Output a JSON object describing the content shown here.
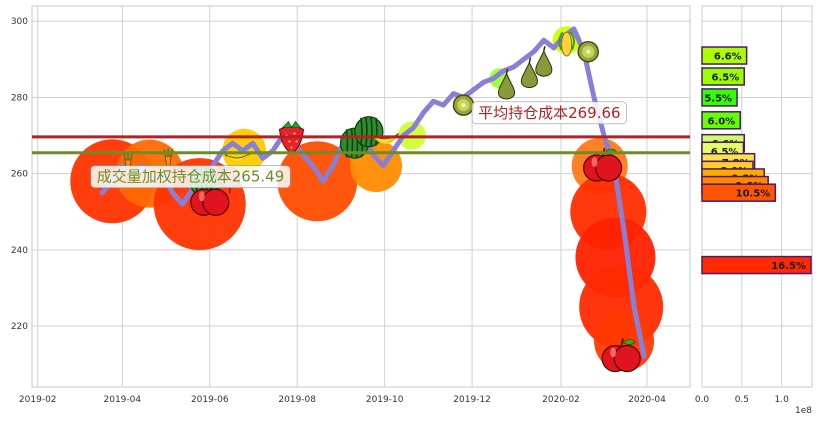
{
  "chart_data": [
    {
      "type": "line",
      "x_ticks": [
        "2019-02",
        "2019-04",
        "2019-06",
        "2019-08",
        "2019-10",
        "2019-12",
        "2020-02",
        "2020-04"
      ],
      "y_ticks": [
        220,
        240,
        260,
        280,
        300
      ],
      "ylim": [
        204,
        304
      ],
      "xlim": [
        "2019-01-28",
        "2020-05-01"
      ],
      "grid": true,
      "price_series": [
        [
          "2019-03-18",
          255
        ],
        [
          "2019-03-25",
          258
        ],
        [
          "2019-04-01",
          262
        ],
        [
          "2019-04-08",
          260
        ],
        [
          "2019-04-15",
          262
        ],
        [
          "2019-04-22",
          258
        ],
        [
          "2019-04-29",
          260
        ],
        [
          "2019-05-06",
          255
        ],
        [
          "2019-05-13",
          252
        ],
        [
          "2019-05-20",
          256
        ],
        [
          "2019-05-27",
          258
        ],
        [
          "2019-06-03",
          262
        ],
        [
          "2019-06-10",
          266
        ],
        [
          "2019-06-17",
          268
        ],
        [
          "2019-06-24",
          266
        ],
        [
          "2019-07-01",
          268
        ],
        [
          "2019-07-08",
          264
        ],
        [
          "2019-07-15",
          266
        ],
        [
          "2019-07-22",
          270
        ],
        [
          "2019-07-29",
          268
        ],
        [
          "2019-08-05",
          265
        ],
        [
          "2019-08-12",
          262
        ],
        [
          "2019-08-19",
          258
        ],
        [
          "2019-08-26",
          262
        ],
        [
          "2019-09-02",
          268
        ],
        [
          "2019-09-09",
          271
        ],
        [
          "2019-09-16",
          270
        ],
        [
          "2019-09-23",
          265
        ],
        [
          "2019-09-30",
          262
        ],
        [
          "2019-10-07",
          266
        ],
        [
          "2019-10-14",
          270
        ],
        [
          "2019-10-21",
          272
        ],
        [
          "2019-10-28",
          276
        ],
        [
          "2019-11-04",
          279
        ],
        [
          "2019-11-11",
          278
        ],
        [
          "2019-11-18",
          281
        ],
        [
          "2019-11-25",
          280
        ],
        [
          "2019-12-02",
          282
        ],
        [
          "2019-12-09",
          284
        ],
        [
          "2019-12-16",
          285
        ],
        [
          "2019-12-23",
          287
        ],
        [
          "2019-12-30",
          288
        ],
        [
          "2020-01-06",
          290
        ],
        [
          "2020-01-13",
          292
        ],
        [
          "2020-01-20",
          295
        ],
        [
          "2020-01-27",
          293
        ],
        [
          "2020-02-03",
          296
        ],
        [
          "2020-02-10",
          298
        ],
        [
          "2020-02-17",
          292
        ],
        [
          "2020-02-24",
          280
        ],
        [
          "2020-03-02",
          270
        ],
        [
          "2020-03-09",
          262
        ],
        [
          "2020-03-16",
          245
        ],
        [
          "2020-03-23",
          225
        ],
        [
          "2020-03-30",
          212
        ]
      ],
      "reference_lines": [
        {
          "label": "平均持仓成本269.66",
          "value": 269.66,
          "color": "#b22222",
          "label_x": "2019-12-01"
        },
        {
          "label": "成交量加权持仓成本265.49",
          "value": 265.49,
          "color": "#6b8e23",
          "label_x": "2019-03-10"
        }
      ],
      "bubbles": [
        {
          "x": "2019-03-25",
          "y": 258,
          "r": 42,
          "color": "#ff3300"
        },
        {
          "x": "2019-04-20",
          "y": 260,
          "r": 34,
          "color": "#ff6a00"
        },
        {
          "x": "2019-05-25",
          "y": 252,
          "r": 46,
          "color": "#ff3300"
        },
        {
          "x": "2019-06-25",
          "y": 266,
          "r": 22,
          "color": "#ffcc00"
        },
        {
          "x": "2019-08-15",
          "y": 258,
          "r": 40,
          "color": "#ff4d00"
        },
        {
          "x": "2019-09-25",
          "y": 262,
          "r": 26,
          "color": "#ff8c00"
        },
        {
          "x": "2019-10-20",
          "y": 270,
          "r": 14,
          "color": "#ccff33"
        },
        {
          "x": "2019-12-20",
          "y": 285,
          "r": 10,
          "color": "#99ff33"
        },
        {
          "x": "2020-02-05",
          "y": 295,
          "r": 14,
          "color": "#ccff00"
        },
        {
          "x": "2020-02-28",
          "y": 262,
          "r": 28,
          "color": "#ff7a1a"
        },
        {
          "x": "2020-03-05",
          "y": 250,
          "r": 38,
          "color": "#ff2d00"
        },
        {
          "x": "2020-03-10",
          "y": 238,
          "r": 40,
          "color": "#ff2200"
        },
        {
          "x": "2020-03-14",
          "y": 225,
          "r": 42,
          "color": "#ff2a00"
        },
        {
          "x": "2020-03-16",
          "y": 216,
          "r": 30,
          "color": "#ff3a00"
        }
      ],
      "fruit_markers": [
        {
          "x": "2019-04-05",
          "y": 262,
          "icon": "carrot-icon"
        },
        {
          "x": "2019-05-03",
          "y": 263,
          "icon": "carrot-icon"
        },
        {
          "x": "2019-05-28",
          "y": 258,
          "icon": "watermelon-icon"
        },
        {
          "x": "2019-06-01",
          "y": 253,
          "icon": "apple-icon"
        },
        {
          "x": "2019-06-15",
          "y": 259,
          "icon": "radish-icon"
        },
        {
          "x": "2019-06-20",
          "y": 264,
          "icon": "banana-icon"
        },
        {
          "x": "2019-07-28",
          "y": 270,
          "icon": "strawberry-icon"
        },
        {
          "x": "2019-09-10",
          "y": 268,
          "icon": "watermelon-icon"
        },
        {
          "x": "2019-09-20",
          "y": 271,
          "icon": "watermelon-icon"
        },
        {
          "x": "2019-10-01",
          "y": 269,
          "icon": "banana-icon"
        },
        {
          "x": "2019-11-25",
          "y": 278,
          "icon": "kiwi-icon"
        },
        {
          "x": "2019-12-25",
          "y": 283,
          "icon": "pear-icon"
        },
        {
          "x": "2020-01-10",
          "y": 286,
          "icon": "pear-icon"
        },
        {
          "x": "2020-01-20",
          "y": 289,
          "icon": "pear-icon"
        },
        {
          "x": "2020-02-05",
          "y": 294,
          "icon": "corn-icon"
        },
        {
          "x": "2020-02-20",
          "y": 292,
          "icon": "kiwi-icon"
        },
        {
          "x": "2020-03-01",
          "y": 262,
          "icon": "apple-icon"
        },
        {
          "x": "2020-03-14",
          "y": 212,
          "icon": "apple-icon"
        }
      ]
    },
    {
      "type": "bar",
      "orientation": "horizontal",
      "x_ticks": [
        "0.0",
        "0.5",
        "1.0"
      ],
      "x_tick_values": [
        0,
        0.5,
        1.0
      ],
      "x_offset_label": "1e8",
      "xlim": [
        0,
        1.38
      ],
      "ylim": [
        204,
        304
      ],
      "bars": [
        {
          "price": 291,
          "volume": 0.56,
          "label": "6.6%",
          "color": "#aaff00"
        },
        {
          "price": 285.5,
          "volume": 0.53,
          "label": "6.5%",
          "color": "#99ff00"
        },
        {
          "price": 280,
          "volume": 0.44,
          "label": "5.5%",
          "color": "#33ff00"
        },
        {
          "price": 274,
          "volume": 0.48,
          "label": "6.0%",
          "color": "#66ff00"
        },
        {
          "price": 268,
          "volume": 0.53,
          "label": "6.6%",
          "color": "#ccff66"
        },
        {
          "price": 266,
          "volume": 0.52,
          "label": "6.5%",
          "color": "#e6ff66"
        },
        {
          "price": 263,
          "volume": 0.66,
          "label": "7.8%",
          "color": "#ffe14d"
        },
        {
          "price": 261,
          "volume": 0.64,
          "label": "8.0%",
          "color": "#ffcc33"
        },
        {
          "price": 259,
          "volume": 0.78,
          "label": "9.8%",
          "color": "#ffaa00"
        },
        {
          "price": 257,
          "volume": 0.83,
          "label": "9.6%",
          "color": "#ff8800"
        },
        {
          "price": 255,
          "volume": 0.92,
          "label": "10.5%",
          "color": "#ff5500"
        },
        {
          "price": 236,
          "volume": 1.45,
          "label": "16.5%",
          "color": "#ff2a00"
        }
      ]
    }
  ]
}
